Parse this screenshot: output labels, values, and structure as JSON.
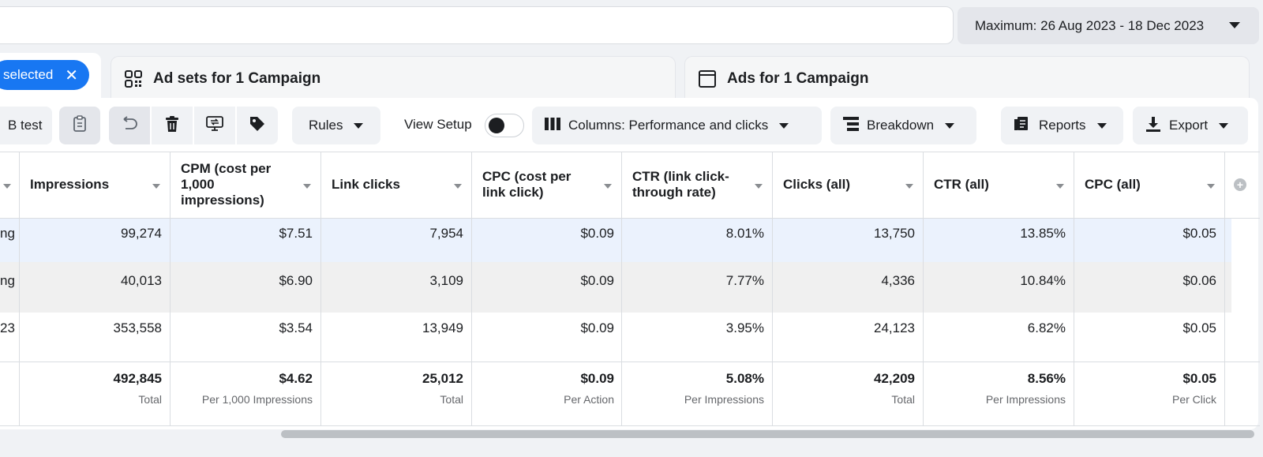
{
  "date_range": {
    "label": "Maximum: 26 Aug 2023 - 18 Dec 2023"
  },
  "tabs": {
    "selected_pill": "selected",
    "adsets": "Ad sets for 1 Campaign",
    "ads": "Ads for 1 Campaign"
  },
  "toolbar": {
    "ab_test": "B test",
    "rules": "Rules",
    "view_setup": "View Setup",
    "columns": "Columns: Performance and clicks",
    "breakdown": "Breakdown",
    "reports": "Reports",
    "export": "Export"
  },
  "table": {
    "headers": [
      "Impressions",
      "CPM (cost per 1,000 impressions)",
      "Link clicks",
      "CPC (cost per link click)",
      "CTR (link click-through rate)",
      "Clicks (all)",
      "CTR (all)",
      "CPC (all)"
    ],
    "rows": [
      {
        "frag": "ng",
        "cells": [
          "99,274",
          "$7.51",
          "7,954",
          "$0.09",
          "8.01%",
          "13,750",
          "13.85%",
          "$0.05"
        ]
      },
      {
        "frag": "ng",
        "cells": [
          "40,013",
          "$6.90",
          "3,109",
          "$0.09",
          "7.77%",
          "4,336",
          "10.84%",
          "$0.06"
        ]
      },
      {
        "frag": "23",
        "cells": [
          "353,558",
          "$3.54",
          "13,949",
          "$0.09",
          "3.95%",
          "24,123",
          "6.82%",
          "$0.05"
        ]
      }
    ],
    "totals": [
      {
        "value": "492,845",
        "sub": "Total"
      },
      {
        "value": "$4.62",
        "sub": "Per 1,000 Impressions"
      },
      {
        "value": "25,012",
        "sub": "Total"
      },
      {
        "value": "$0.09",
        "sub": "Per Action"
      },
      {
        "value": "5.08%",
        "sub": "Per Impressions"
      },
      {
        "value": "42,209",
        "sub": "Total"
      },
      {
        "value": "8.56%",
        "sub": "Per Impressions"
      },
      {
        "value": "$0.05",
        "sub": "Per Click"
      }
    ]
  },
  "colors": {
    "accent": "#1877f2",
    "row_selected": "#ebf2fd",
    "row_hover": "#f0f0f0"
  }
}
